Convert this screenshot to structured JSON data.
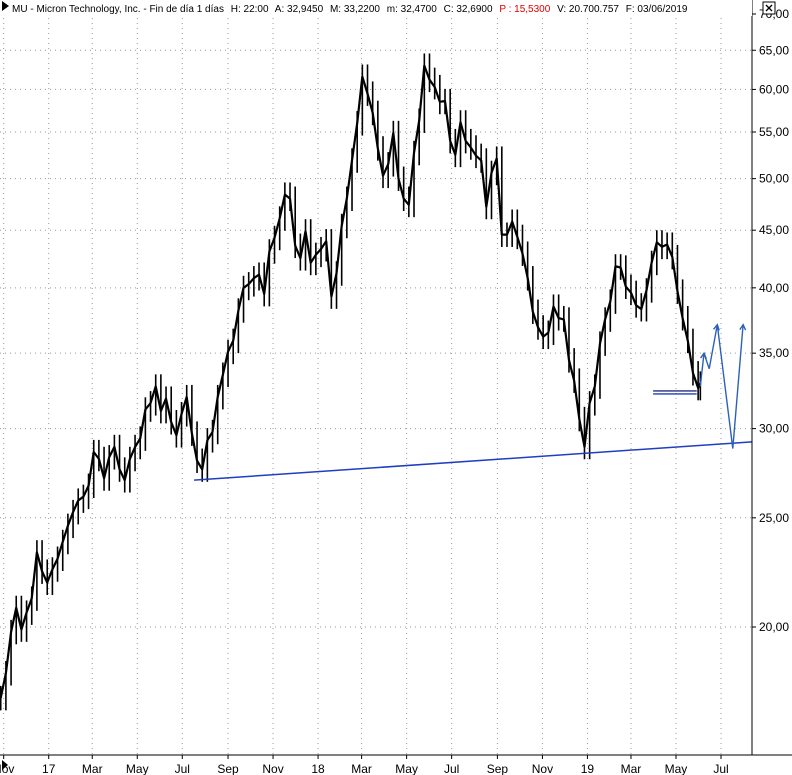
{
  "header": {
    "title": "MU - Micron Technology, Inc. - Fin de día 1 días",
    "h": "H: 22:00",
    "a": "A: 32,9450",
    "m": "M: 33,2200",
    "min": "m: 32,4700",
    "c": "C: 32,6900",
    "p": "P : 15,5300",
    "v": "V: 20.700.757",
    "f": "F: 03/06/2019"
  },
  "colors": {
    "price": "#000000",
    "support": "#1f3fbf",
    "projection": "#2b62b8",
    "grid": "#aaaaaa",
    "accent_red": "#e00000"
  },
  "icons": [
    "scroll-left-arrow-icon",
    "close-icon"
  ],
  "chart_data": {
    "type": "line",
    "scale": "log",
    "y_ticks": [
      {
        "value": 20,
        "label": "20,00"
      },
      {
        "value": 25,
        "label": "25,00"
      },
      {
        "value": 30,
        "label": "30,00"
      },
      {
        "value": 35,
        "label": "35,00"
      },
      {
        "value": 40,
        "label": "40,00"
      },
      {
        "value": 45,
        "label": "45,00"
      },
      {
        "value": 50,
        "label": "50,00"
      },
      {
        "value": 55,
        "label": "55,00"
      },
      {
        "value": 60,
        "label": "60,00"
      },
      {
        "value": 65,
        "label": "65,00"
      },
      {
        "value": 70,
        "label": "70,00"
      }
    ],
    "ylim": [
      16.4,
      70
    ],
    "x_ticks": [
      {
        "date": "2016-11-01",
        "label": "Nov"
      },
      {
        "date": "2017-01-01",
        "label": "17"
      },
      {
        "date": "2017-03-01",
        "label": "Mar"
      },
      {
        "date": "2017-05-01",
        "label": "May"
      },
      {
        "date": "2017-07-01",
        "label": "Jul"
      },
      {
        "date": "2017-09-01",
        "label": "Sep"
      },
      {
        "date": "2017-11-01",
        "label": "Nov"
      },
      {
        "date": "2018-01-01",
        "label": "18"
      },
      {
        "date": "2018-03-01",
        "label": "Mar"
      },
      {
        "date": "2018-05-01",
        "label": "May"
      },
      {
        "date": "2018-07-01",
        "label": "Jul"
      },
      {
        "date": "2018-09-01",
        "label": "Sep"
      },
      {
        "date": "2018-11-01",
        "label": "Nov"
      },
      {
        "date": "2019-01-01",
        "label": "19"
      },
      {
        "date": "2019-03-01",
        "label": "Mar"
      },
      {
        "date": "2019-05-01",
        "label": "May"
      },
      {
        "date": "2019-07-01",
        "label": "Jul"
      }
    ],
    "xlim": [
      "2016-10-27",
      "2019-08-12"
    ],
    "series": [
      {
        "x": [
          "2016-10-28",
          "2016-11-04",
          "2016-11-11",
          "2016-11-18",
          "2016-11-25",
          "2016-12-02",
          "2016-12-09",
          "2016-12-16",
          "2016-12-23",
          "2016-12-30",
          "2017-01-06",
          "2017-01-13",
          "2017-01-20",
          "2017-01-27",
          "2017-02-03",
          "2017-02-10",
          "2017-02-17",
          "2017-02-24",
          "2017-03-03",
          "2017-03-10",
          "2017-03-17",
          "2017-03-24",
          "2017-03-31",
          "2017-04-07",
          "2017-04-14",
          "2017-04-21",
          "2017-04-28",
          "2017-05-05",
          "2017-05-12",
          "2017-05-19",
          "2017-05-26",
          "2017-06-02",
          "2017-06-09",
          "2017-06-16",
          "2017-06-23",
          "2017-06-30",
          "2017-07-07",
          "2017-07-14",
          "2017-07-21",
          "2017-07-28",
          "2017-08-04",
          "2017-08-11",
          "2017-08-18",
          "2017-08-25",
          "2017-09-01",
          "2017-09-08",
          "2017-09-15",
          "2017-09-22",
          "2017-09-29",
          "2017-10-06",
          "2017-10-13",
          "2017-10-20",
          "2017-10-27",
          "2017-11-03",
          "2017-11-10",
          "2017-11-17",
          "2017-11-24",
          "2017-12-01",
          "2017-12-08",
          "2017-12-15",
          "2017-12-22",
          "2017-12-29",
          "2018-01-05",
          "2018-01-12",
          "2018-01-19",
          "2018-01-26",
          "2018-02-02",
          "2018-02-09",
          "2018-02-16",
          "2018-02-23",
          "2018-03-02",
          "2018-03-09",
          "2018-03-16",
          "2018-03-23",
          "2018-03-30",
          "2018-04-06",
          "2018-04-13",
          "2018-04-20",
          "2018-04-27",
          "2018-05-04",
          "2018-05-11",
          "2018-05-18",
          "2018-05-25",
          "2018-06-01",
          "2018-06-08",
          "2018-06-15",
          "2018-06-22",
          "2018-06-29",
          "2018-07-06",
          "2018-07-13",
          "2018-07-20",
          "2018-07-27",
          "2018-08-03",
          "2018-08-10",
          "2018-08-17",
          "2018-08-24",
          "2018-08-31",
          "2018-09-07",
          "2018-09-14",
          "2018-09-21",
          "2018-09-28",
          "2018-10-05",
          "2018-10-12",
          "2018-10-19",
          "2018-10-26",
          "2018-11-02",
          "2018-11-09",
          "2018-11-16",
          "2018-11-23",
          "2018-11-30",
          "2018-12-07",
          "2018-12-14",
          "2018-12-21",
          "2018-12-28",
          "2019-01-04",
          "2019-01-11",
          "2019-01-18",
          "2019-01-25",
          "2019-02-01",
          "2019-02-08",
          "2019-02-15",
          "2019-02-22",
          "2019-03-01",
          "2019-03-08",
          "2019-03-15",
          "2019-03-22",
          "2019-03-29",
          "2019-04-05",
          "2019-04-12",
          "2019-04-19",
          "2019-04-26",
          "2019-05-03",
          "2019-05-10",
          "2019-05-17",
          "2019-05-24",
          "2019-05-31",
          "2019-06-03"
        ],
        "values": [
          17.3,
          18.2,
          19.8,
          20.8,
          19.9,
          20.6,
          21.2,
          23.3,
          22.4,
          21.9,
          22.5,
          23.0,
          23.8,
          24.6,
          25.3,
          25.9,
          26.1,
          26.7,
          28.6,
          28.2,
          27.1,
          28.3,
          28.9,
          27.6,
          27.0,
          28.2,
          28.9,
          29.4,
          31.2,
          31.6,
          32.7,
          31.1,
          31.9,
          30.4,
          29.6,
          30.9,
          32.0,
          29.7,
          28.1,
          27.6,
          29.3,
          29.8,
          32.0,
          33.5,
          35.1,
          35.9,
          38.2,
          40.0,
          40.3,
          40.8,
          41.1,
          39.5,
          43.1,
          44.3,
          46.1,
          48.4,
          48.0,
          43.6,
          42.5,
          44.9,
          42.1,
          42.8,
          43.3,
          44.0,
          39.3,
          41.2,
          45.4,
          48.0,
          51.9,
          56.0,
          61.6,
          59.5,
          57.2,
          53.2,
          50.3,
          51.5,
          54.9,
          50.0,
          48.0,
          47.4,
          52.7,
          56.3,
          63.0,
          61.2,
          60.3,
          58.5,
          58.6,
          54.0,
          52.5,
          56.1,
          54.0,
          53.3,
          52.4,
          51.9,
          47.2,
          50.6,
          52.1,
          44.6,
          44.6,
          45.8,
          44.4,
          42.9,
          40.8,
          38.1,
          36.9,
          36.2,
          36.5,
          38.5,
          37.6,
          37.5,
          34.5,
          33.1,
          30.6,
          28.9,
          31.6,
          32.7,
          35.7,
          37.5,
          38.9,
          41.8,
          41.7,
          40.1,
          39.6,
          38.6,
          38.3,
          39.8,
          42.1,
          43.9,
          43.5,
          43.7,
          42.6,
          39.7,
          37.6,
          35.9,
          33.6,
          32.6,
          32.9
        ]
      }
    ],
    "annotations": {
      "support_line": [
        [
          "2017-07-17",
          27.0
        ],
        [
          "2019-08-12",
          29.2
        ]
      ],
      "resistance_segment": [
        [
          "2019-03-31",
          32.4
        ],
        [
          "2019-05-29",
          32.4
        ]
      ],
      "projection": [
        [
          "2019-06-03",
          32.7
        ],
        [
          "2019-06-08",
          35.0
        ],
        [
          "2019-06-15",
          33.9
        ],
        [
          "2019-06-26",
          37.1
        ],
        [
          "2019-07-17",
          28.8
        ],
        [
          "2019-07-31",
          37.1
        ]
      ]
    }
  }
}
